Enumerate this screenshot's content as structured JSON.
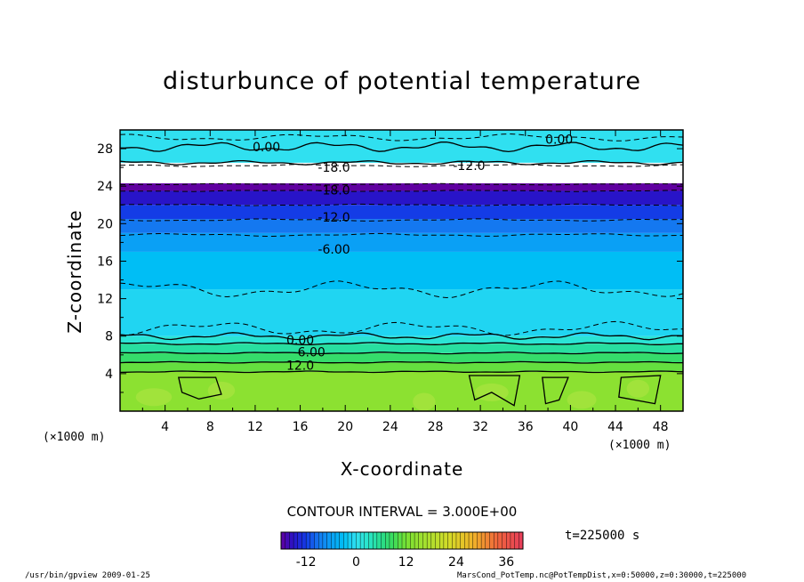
{
  "chart_data": {
    "type": "heatmap",
    "title": "disturbunce of potential temperature",
    "xlabel": "X-coordinate",
    "ylabel": "Z-coordinate",
    "x_unit": "(×1000 m)",
    "y_unit": "(×1000 m)",
    "xlim": [
      0,
      50
    ],
    "ylim": [
      0,
      30
    ],
    "x_ticks": [
      4,
      8,
      12,
      16,
      20,
      24,
      28,
      32,
      36,
      40,
      44,
      48
    ],
    "y_ticks": [
      4,
      8,
      12,
      16,
      20,
      24,
      28
    ],
    "contour_interval": "CONTOUR INTERVAL = 3.000E+00",
    "colorbar": {
      "range": [
        -18,
        40
      ],
      "ticks": [
        -12,
        0,
        12,
        24,
        36
      ]
    },
    "time": "t=225000 s",
    "contour_labels": [
      {
        "text": "0.00",
        "x": 13,
        "z": 28.2
      },
      {
        "text": "0.00",
        "x": 39,
        "z": 29.0
      },
      {
        "text": "-18.0",
        "x": 19,
        "z": 26.0
      },
      {
        "text": "-12.0",
        "x": 31,
        "z": 26.2
      },
      {
        "text": "-18.0",
        "x": 19,
        "z": 23.6
      },
      {
        "text": "-12.0",
        "x": 19,
        "z": 20.7
      },
      {
        "text": "-6.00",
        "x": 19,
        "z": 17.3
      },
      {
        "text": "0.00",
        "x": 16,
        "z": 7.6
      },
      {
        "text": "6.00",
        "x": 17,
        "z": 6.3
      },
      {
        "text": "12.0",
        "x": 16,
        "z": 4.9
      }
    ],
    "layers": [
      {
        "z": [
          0,
          4.2
        ],
        "value": 14
      },
      {
        "z": [
          4.2,
          5.2
        ],
        "value": 11
      },
      {
        "z": [
          5.2,
          6.2
        ],
        "value": 8
      },
      {
        "z": [
          6.2,
          7.2
        ],
        "value": 5
      },
      {
        "z": [
          7.2,
          8.0
        ],
        "value": 2
      },
      {
        "z": [
          8.0,
          13.0
        ],
        "value": -1
      },
      {
        "z": [
          13.0,
          17.0
        ],
        "value": -3
      },
      {
        "z": [
          17.0,
          19.0
        ],
        "value": -6
      },
      {
        "z": [
          19.0,
          20.5
        ],
        "value": -9
      },
      {
        "z": [
          20.5,
          22.0
        ],
        "value": -12
      },
      {
        "z": [
          22.0,
          23.5
        ],
        "value": -15
      },
      {
        "z": [
          23.5,
          24.3
        ],
        "value": -18
      },
      {
        "z": [
          26.5,
          30.0
        ],
        "value": 0
      }
    ]
  },
  "footer": {
    "left": "/usr/bin/gpview   2009-01-25",
    "right": "MarsCond_PotTemp.nc@PotTempDist,x=0:50000,z=0:30000,t=225000"
  },
  "colors": {
    "high": "#a0e030",
    "zero": "#30e0f0",
    "low": "#6000a0"
  }
}
